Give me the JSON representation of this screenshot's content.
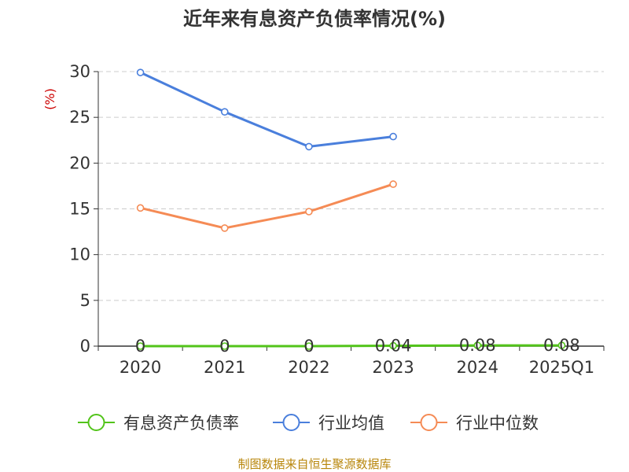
{
  "chart_data": {
    "type": "line",
    "title": "近年来有息资产负债率情况(%)",
    "ylabel": "(%)",
    "categories": [
      "2020",
      "2021",
      "2022",
      "2023",
      "2024",
      "2025Q1"
    ],
    "ylim": [
      0,
      30
    ],
    "yticks": [
      0,
      5,
      10,
      15,
      20,
      25,
      30
    ],
    "grid": true,
    "legend_position": "bottom",
    "series": [
      {
        "name": "有息资产负债率",
        "color": "#52c41a",
        "values": [
          0,
          0,
          0,
          0.04,
          0.08,
          0.08
        ],
        "labels": [
          "0",
          "0",
          "0",
          "0.04",
          "0.08",
          "0.08"
        ]
      },
      {
        "name": "行业均值",
        "color": "#4a7fdc",
        "values": [
          29.9,
          25.6,
          21.8,
          22.9,
          null,
          null
        ]
      },
      {
        "name": "行业中位数",
        "color": "#f58b55",
        "values": [
          15.1,
          12.9,
          14.7,
          17.7,
          null,
          null
        ]
      }
    ],
    "source": "制图数据来自恒生聚源数据库"
  }
}
